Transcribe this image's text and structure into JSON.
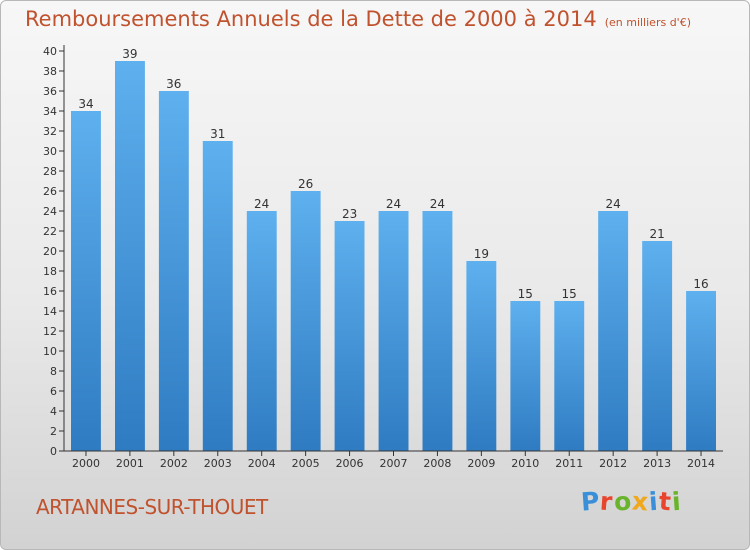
{
  "header": {
    "title": "Remboursements Annuels de la Dette de 2000 à 2014",
    "subtitle": "(en milliers d'€)"
  },
  "footer": {
    "commune": "ARTANNES-SUR-THOUET",
    "logo_letters": [
      "P",
      "r",
      "o",
      "x",
      "i",
      "t",
      "i"
    ],
    "logo_colors": [
      "#3a8fd8",
      "#e8442e",
      "#6ab42d",
      "#f0a81c",
      "#3a8fd8",
      "#e8442e",
      "#6ab42d"
    ]
  },
  "colors": {
    "bar_top": "#5eb0ee",
    "bar_bottom": "#2f7bc2",
    "axis": "#333333",
    "text": "#333333"
  },
  "chart_data": {
    "type": "bar",
    "title": "Remboursements Annuels de la Dette de 2000 à 2014",
    "subtitle": "(en milliers d'€)",
    "categories": [
      "2000",
      "2001",
      "2002",
      "2003",
      "2004",
      "2005",
      "2006",
      "2007",
      "2008",
      "2009",
      "2010",
      "2011",
      "2012",
      "2013",
      "2014"
    ],
    "values": [
      34,
      39,
      36,
      31,
      24,
      26,
      23,
      24,
      24,
      19,
      15,
      15,
      24,
      21,
      16
    ],
    "ylim": [
      0,
      40
    ],
    "ytick_step": 2,
    "xlabel": "",
    "ylabel": "",
    "grid": false,
    "data_labels": true
  }
}
